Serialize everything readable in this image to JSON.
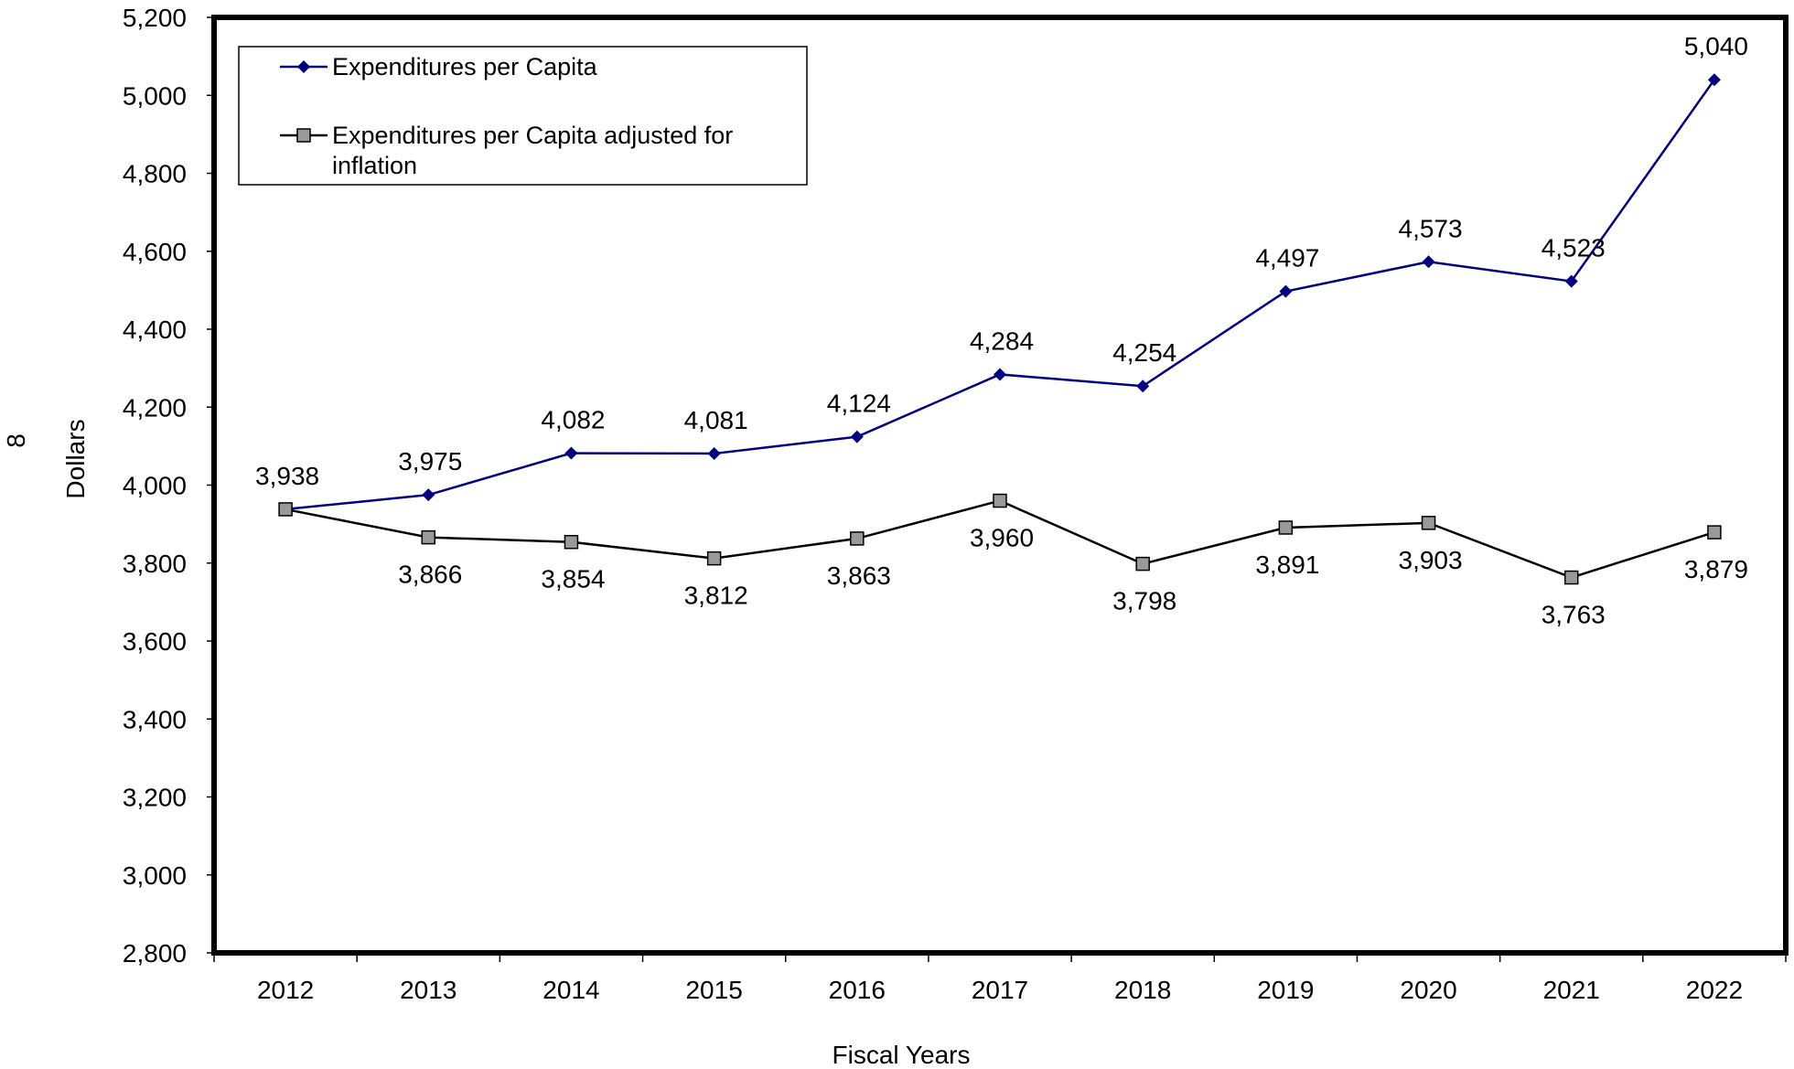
{
  "chart_data": {
    "type": "line",
    "title": "",
    "xlabel": "Fiscal Years",
    "ylabel": "Dollars",
    "side_note": "8",
    "categories": [
      "2012",
      "2013",
      "2014",
      "2015",
      "2016",
      "2017",
      "2018",
      "2019",
      "2020",
      "2021",
      "2022"
    ],
    "ylim": [
      2800,
      5200
    ],
    "ytick_step": 200,
    "ytick_labels": [
      "2,800",
      "3,000",
      "3,200",
      "3,400",
      "3,600",
      "3,800",
      "4,000",
      "4,200",
      "4,400",
      "4,600",
      "4,800",
      "5,000",
      "5,200"
    ],
    "grid": false,
    "legend_position": "top-left",
    "series": [
      {
        "name": "Expenditures per Capita",
        "values": [
          3938,
          3975,
          4082,
          4081,
          4124,
          4284,
          4254,
          4497,
          4573,
          4523,
          5040
        ],
        "labels": [
          "3,938",
          "3,975",
          "4,082",
          "4,081",
          "4,124",
          "4,284",
          "4,254",
          "4,497",
          "4,573",
          "4,523",
          "5,040"
        ],
        "color": "#000080",
        "marker": "diamond",
        "label_position": "above"
      },
      {
        "name": "Expenditures per Capita adjusted for inflation",
        "legend_lines": [
          "Expenditures per Capita adjusted for",
          "inflation"
        ],
        "values": [
          3938,
          3866,
          3854,
          3812,
          3863,
          3960,
          3798,
          3891,
          3903,
          3763,
          3879
        ],
        "labels": [
          "",
          "3,866",
          "3,854",
          "3,812",
          "3,863",
          "3,960",
          "3,798",
          "3,891",
          "3,903",
          "3,763",
          "3,879"
        ],
        "color": "#000000",
        "marker_fill": "#999999",
        "marker": "square",
        "label_position": "below"
      }
    ]
  }
}
